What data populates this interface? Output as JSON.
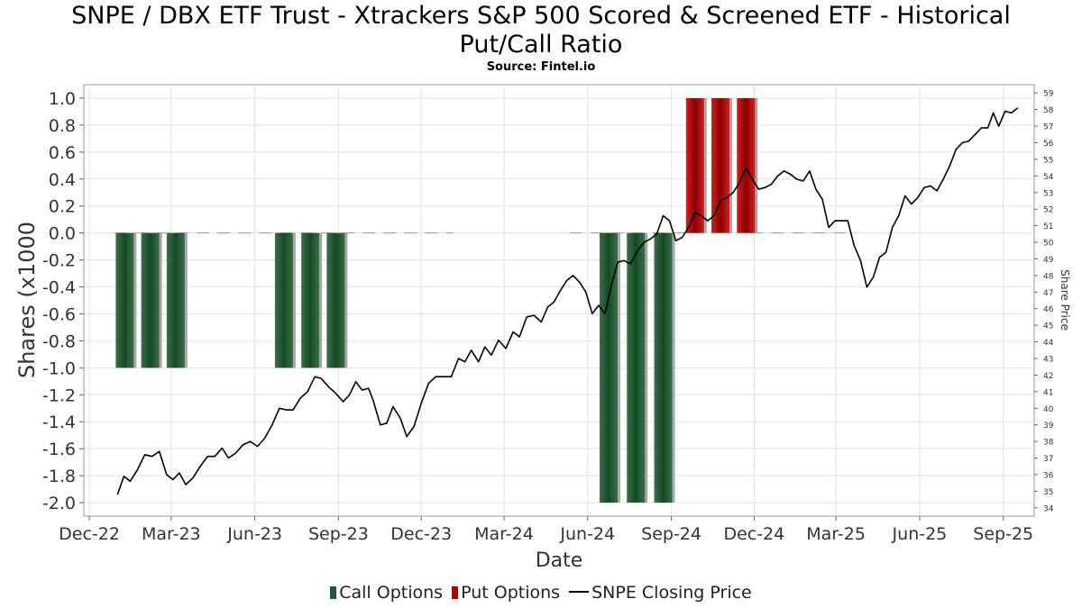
{
  "title_line1": "SNPE / DBX ETF Trust - Xtrackers S&P 500 Scored & Screened ETF - Historical",
  "title_line2": "Put/Call Ratio",
  "subtitle": "Source: Fintel.io",
  "legend": [
    {
      "label": "Call Options",
      "color": "#1f5a30"
    },
    {
      "label": "Put Options",
      "color": "#b00000"
    },
    {
      "label": "SNPE Closing Price",
      "color": "#000000"
    }
  ],
  "chart_data": {
    "type": "bar",
    "xlabel": "Date",
    "ylabel": "Shares (x1000",
    "y2label": "Share Price",
    "ylim": [
      -2.1,
      1.1
    ],
    "y2lim": [
      33.5,
      59.5
    ],
    "xlim": [
      "2022-11-25",
      "2025-10-05"
    ],
    "grid": true,
    "legend_position": "bottom",
    "x_ticks": [
      {
        "label": "Dec-22",
        "date": "2022-12-01"
      },
      {
        "label": "Mar-23",
        "date": "2023-03-01"
      },
      {
        "label": "Jun-23",
        "date": "2023-06-01"
      },
      {
        "label": "Sep-23",
        "date": "2023-09-01"
      },
      {
        "label": "Dec-23",
        "date": "2023-12-01"
      },
      {
        "label": "Mar-24",
        "date": "2024-03-01"
      },
      {
        "label": "Jun-24",
        "date": "2024-06-01"
      },
      {
        "label": "Sep-24",
        "date": "2024-09-01"
      },
      {
        "label": "Dec-24",
        "date": "2024-12-01"
      },
      {
        "label": "Mar-25",
        "date": "2025-03-01"
      },
      {
        "label": "Jun-25",
        "date": "2025-06-01"
      },
      {
        "label": "Sep-25",
        "date": "2025-09-01"
      }
    ],
    "y_ticks": [
      1.0,
      0.8,
      0.6,
      0.4,
      0.2,
      0.0,
      -0.2,
      -0.4,
      -0.6,
      -0.8,
      -1.0,
      -1.2,
      -1.4,
      -1.6,
      -1.8,
      -2.0
    ],
    "y_tick_labels": [
      "1.0",
      "0.8",
      "0.6",
      "0.4",
      "0.2",
      "0.0",
      "-0.2",
      "-0.4",
      "-0.6",
      "-0.8",
      "-1.0",
      "-1.2",
      "-1.4",
      "-1.6",
      "-1.8",
      "-2.0"
    ],
    "y2_ticks": [
      59,
      58,
      57,
      56,
      55,
      54,
      53,
      52,
      51,
      50,
      49,
      48,
      47,
      46,
      45,
      44,
      43,
      42,
      41,
      40,
      39,
      38,
      37,
      36,
      35,
      34
    ],
    "series": [
      {
        "name": "Call Options",
        "kind": "bar",
        "color": "#1f5a30",
        "points": [
          {
            "date": "2023-01-09",
            "value": -1.0
          },
          {
            "date": "2023-02-06",
            "value": -1.0
          },
          {
            "date": "2023-03-06",
            "value": -1.0
          },
          {
            "date": "2023-07-03",
            "value": -1.0
          },
          {
            "date": "2023-08-01",
            "value": -1.0
          },
          {
            "date": "2023-08-29",
            "value": -1.0
          },
          {
            "date": "2024-06-24",
            "value": -2.0
          },
          {
            "date": "2024-07-24",
            "value": -2.0
          },
          {
            "date": "2024-08-23",
            "value": -2.0
          }
        ]
      },
      {
        "name": "Put Options",
        "kind": "bar",
        "color": "#b00000",
        "points": [
          {
            "date": "2024-09-27",
            "value": 1.0
          },
          {
            "date": "2024-10-25",
            "value": 1.0
          },
          {
            "date": "2024-11-22",
            "value": 1.0
          }
        ]
      },
      {
        "name": "SNPE Closing Price",
        "kind": "line",
        "axis": "right",
        "color": "#000000",
        "points": [
          {
            "date": "2023-01-01",
            "value": 34.8
          },
          {
            "date": "2023-01-08",
            "value": 35.9
          },
          {
            "date": "2023-01-15",
            "value": 35.6
          },
          {
            "date": "2023-01-23",
            "value": 36.3
          },
          {
            "date": "2023-01-31",
            "value": 37.2
          },
          {
            "date": "2023-02-08",
            "value": 37.1
          },
          {
            "date": "2023-02-16",
            "value": 37.4
          },
          {
            "date": "2023-02-24",
            "value": 36.0
          },
          {
            "date": "2023-03-03",
            "value": 35.7
          },
          {
            "date": "2023-03-10",
            "value": 36.1
          },
          {
            "date": "2023-03-17",
            "value": 35.4
          },
          {
            "date": "2023-03-25",
            "value": 35.8
          },
          {
            "date": "2023-04-02",
            "value": 36.5
          },
          {
            "date": "2023-04-10",
            "value": 37.1
          },
          {
            "date": "2023-04-18",
            "value": 37.1
          },
          {
            "date": "2023-04-26",
            "value": 37.6
          },
          {
            "date": "2023-05-03",
            "value": 37.0
          },
          {
            "date": "2023-05-11",
            "value": 37.3
          },
          {
            "date": "2023-05-19",
            "value": 37.8
          },
          {
            "date": "2023-05-27",
            "value": 38.0
          },
          {
            "date": "2023-06-04",
            "value": 37.7
          },
          {
            "date": "2023-06-12",
            "value": 38.2
          },
          {
            "date": "2023-06-20",
            "value": 39.0
          },
          {
            "date": "2023-06-28",
            "value": 40.0
          },
          {
            "date": "2023-07-06",
            "value": 39.9
          },
          {
            "date": "2023-07-13",
            "value": 39.9
          },
          {
            "date": "2023-07-21",
            "value": 40.6
          },
          {
            "date": "2023-07-29",
            "value": 41.0
          },
          {
            "date": "2023-08-06",
            "value": 41.9
          },
          {
            "date": "2023-08-13",
            "value": 41.8
          },
          {
            "date": "2023-08-21",
            "value": 41.3
          },
          {
            "date": "2023-08-29",
            "value": 40.9
          },
          {
            "date": "2023-09-06",
            "value": 40.4
          },
          {
            "date": "2023-09-13",
            "value": 40.8
          },
          {
            "date": "2023-09-20",
            "value": 41.6
          },
          {
            "date": "2023-09-27",
            "value": 41.1
          },
          {
            "date": "2023-10-04",
            "value": 41.2
          },
          {
            "date": "2023-10-09",
            "value": 40.5
          },
          {
            "date": "2023-10-17",
            "value": 39.0
          },
          {
            "date": "2023-10-24",
            "value": 39.1
          },
          {
            "date": "2023-10-31",
            "value": 40.1
          },
          {
            "date": "2023-11-08",
            "value": 39.4
          },
          {
            "date": "2023-11-15",
            "value": 38.3
          },
          {
            "date": "2023-11-23",
            "value": 38.9
          },
          {
            "date": "2023-12-01",
            "value": 40.3
          },
          {
            "date": "2023-12-09",
            "value": 41.5
          },
          {
            "date": "2023-12-17",
            "value": 41.9
          },
          {
            "date": "2023-12-25",
            "value": 41.9
          },
          {
            "date": "2024-01-03",
            "value": 41.9
          },
          {
            "date": "2024-01-11",
            "value": 43.0
          },
          {
            "date": "2024-01-18",
            "value": 42.8
          },
          {
            "date": "2024-01-25",
            "value": 43.5
          },
          {
            "date": "2024-02-02",
            "value": 42.8
          },
          {
            "date": "2024-02-09",
            "value": 43.7
          },
          {
            "date": "2024-02-16",
            "value": 43.2
          },
          {
            "date": "2024-02-24",
            "value": 44.1
          },
          {
            "date": "2024-03-03",
            "value": 43.6
          },
          {
            "date": "2024-03-11",
            "value": 44.6
          },
          {
            "date": "2024-03-18",
            "value": 44.3
          },
          {
            "date": "2024-03-26",
            "value": 45.5
          },
          {
            "date": "2024-04-03",
            "value": 45.6
          },
          {
            "date": "2024-04-11",
            "value": 45.2
          },
          {
            "date": "2024-04-18",
            "value": 46.1
          },
          {
            "date": "2024-04-25",
            "value": 46.4
          },
          {
            "date": "2024-05-02",
            "value": 47.1
          },
          {
            "date": "2024-05-09",
            "value": 47.7
          },
          {
            "date": "2024-05-16",
            "value": 48.0
          },
          {
            "date": "2024-05-23",
            "value": 47.6
          },
          {
            "date": "2024-05-30",
            "value": 47.0
          },
          {
            "date": "2024-06-06",
            "value": 45.7
          },
          {
            "date": "2024-06-13",
            "value": 46.2
          },
          {
            "date": "2024-06-20",
            "value": 45.7
          },
          {
            "date": "2024-06-27",
            "value": 47.4
          },
          {
            "date": "2024-07-04",
            "value": 48.8
          },
          {
            "date": "2024-07-11",
            "value": 48.9
          },
          {
            "date": "2024-07-18",
            "value": 48.7
          },
          {
            "date": "2024-07-26",
            "value": 49.5
          },
          {
            "date": "2024-08-02",
            "value": 50.0
          },
          {
            "date": "2024-08-09",
            "value": 50.2
          },
          {
            "date": "2024-08-16",
            "value": 50.5
          },
          {
            "date": "2024-08-23",
            "value": 51.6
          },
          {
            "date": "2024-08-30",
            "value": 51.3
          },
          {
            "date": "2024-09-06",
            "value": 50.1
          },
          {
            "date": "2024-09-13",
            "value": 50.3
          },
          {
            "date": "2024-09-20",
            "value": 50.9
          },
          {
            "date": "2024-09-27",
            "value": 51.8
          },
          {
            "date": "2024-10-04",
            "value": 51.6
          },
          {
            "date": "2024-10-11",
            "value": 51.3
          },
          {
            "date": "2024-10-18",
            "value": 51.6
          },
          {
            "date": "2024-10-25",
            "value": 52.5
          },
          {
            "date": "2024-11-01",
            "value": 52.7
          },
          {
            "date": "2024-11-08",
            "value": 53.0
          },
          {
            "date": "2024-11-15",
            "value": 53.6
          },
          {
            "date": "2024-11-22",
            "value": 54.5
          },
          {
            "date": "2024-11-29",
            "value": 53.8
          },
          {
            "date": "2024-12-06",
            "value": 53.2
          },
          {
            "date": "2024-12-13",
            "value": 53.3
          },
          {
            "date": "2024-12-20",
            "value": 53.5
          },
          {
            "date": "2024-12-27",
            "value": 54.0
          },
          {
            "date": "2025-01-03",
            "value": 54.3
          },
          {
            "date": "2025-01-10",
            "value": 54.1
          },
          {
            "date": "2025-01-17",
            "value": 53.8
          },
          {
            "date": "2025-01-24",
            "value": 53.7
          },
          {
            "date": "2025-01-31",
            "value": 54.3
          },
          {
            "date": "2025-02-07",
            "value": 53.2
          },
          {
            "date": "2025-02-14",
            "value": 52.6
          },
          {
            "date": "2025-02-21",
            "value": 50.9
          },
          {
            "date": "2025-02-28",
            "value": 51.3
          },
          {
            "date": "2025-03-07",
            "value": 51.3
          },
          {
            "date": "2025-03-14",
            "value": 51.3
          },
          {
            "date": "2025-03-21",
            "value": 49.8
          },
          {
            "date": "2025-03-28",
            "value": 48.9
          },
          {
            "date": "2025-04-04",
            "value": 47.3
          },
          {
            "date": "2025-04-11",
            "value": 47.9
          },
          {
            "date": "2025-04-18",
            "value": 49.1
          },
          {
            "date": "2025-04-25",
            "value": 49.4
          },
          {
            "date": "2025-05-02",
            "value": 50.9
          },
          {
            "date": "2025-05-09",
            "value": 51.6
          },
          {
            "date": "2025-05-16",
            "value": 52.8
          },
          {
            "date": "2025-05-23",
            "value": 52.3
          },
          {
            "date": "2025-05-30",
            "value": 52.7
          },
          {
            "date": "2025-06-06",
            "value": 53.3
          },
          {
            "date": "2025-06-13",
            "value": 53.4
          },
          {
            "date": "2025-06-20",
            "value": 53.1
          },
          {
            "date": "2025-06-27",
            "value": 53.8
          },
          {
            "date": "2025-07-04",
            "value": 54.6
          },
          {
            "date": "2025-07-11",
            "value": 55.6
          },
          {
            "date": "2025-07-18",
            "value": 56.0
          },
          {
            "date": "2025-07-25",
            "value": 56.1
          },
          {
            "date": "2025-08-01",
            "value": 56.5
          },
          {
            "date": "2025-08-08",
            "value": 56.9
          },
          {
            "date": "2025-08-15",
            "value": 56.9
          },
          {
            "date": "2025-08-21",
            "value": 57.8
          },
          {
            "date": "2025-08-27",
            "value": 57.0
          },
          {
            "date": "2025-09-03",
            "value": 57.9
          },
          {
            "date": "2025-09-10",
            "value": 57.8
          },
          {
            "date": "2025-09-17",
            "value": 58.1
          }
        ]
      }
    ]
  }
}
